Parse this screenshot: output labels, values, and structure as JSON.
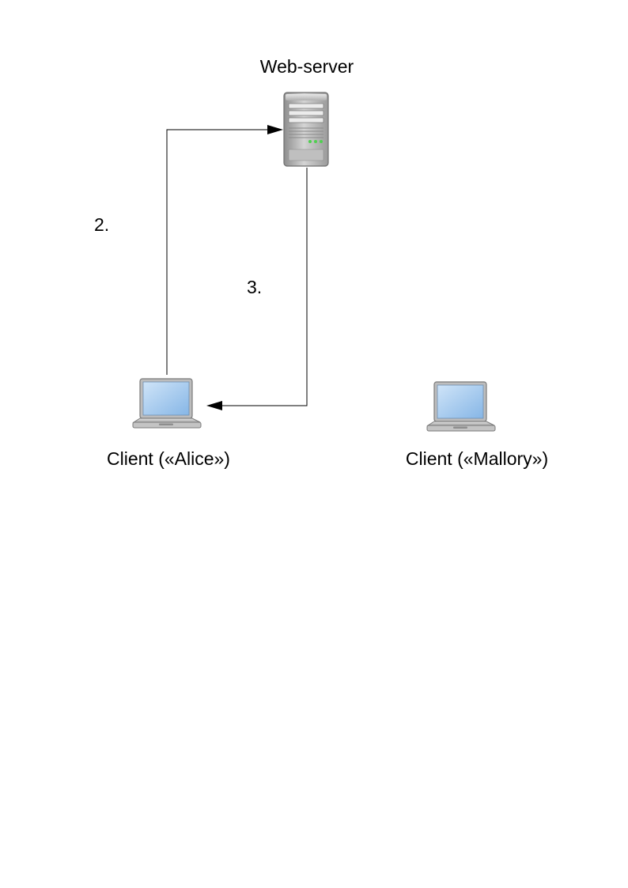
{
  "nodes": {
    "server": {
      "label": "Web-server",
      "icon": "server-icon"
    },
    "alice": {
      "label": "Client («Alice»)",
      "icon": "laptop-icon"
    },
    "mallory": {
      "label": "Client («Mallory»)",
      "icon": "laptop-icon"
    }
  },
  "edges": [
    {
      "id": "step-2",
      "from": "alice",
      "to": "server",
      "label": "2."
    },
    {
      "id": "step-3",
      "from": "server",
      "to": "alice",
      "label": "3."
    }
  ],
  "colors": {
    "line": "#000000",
    "server_body": "#b9b9b9",
    "laptop_screen": "#9cc7ee",
    "led": "#4fd04f"
  }
}
